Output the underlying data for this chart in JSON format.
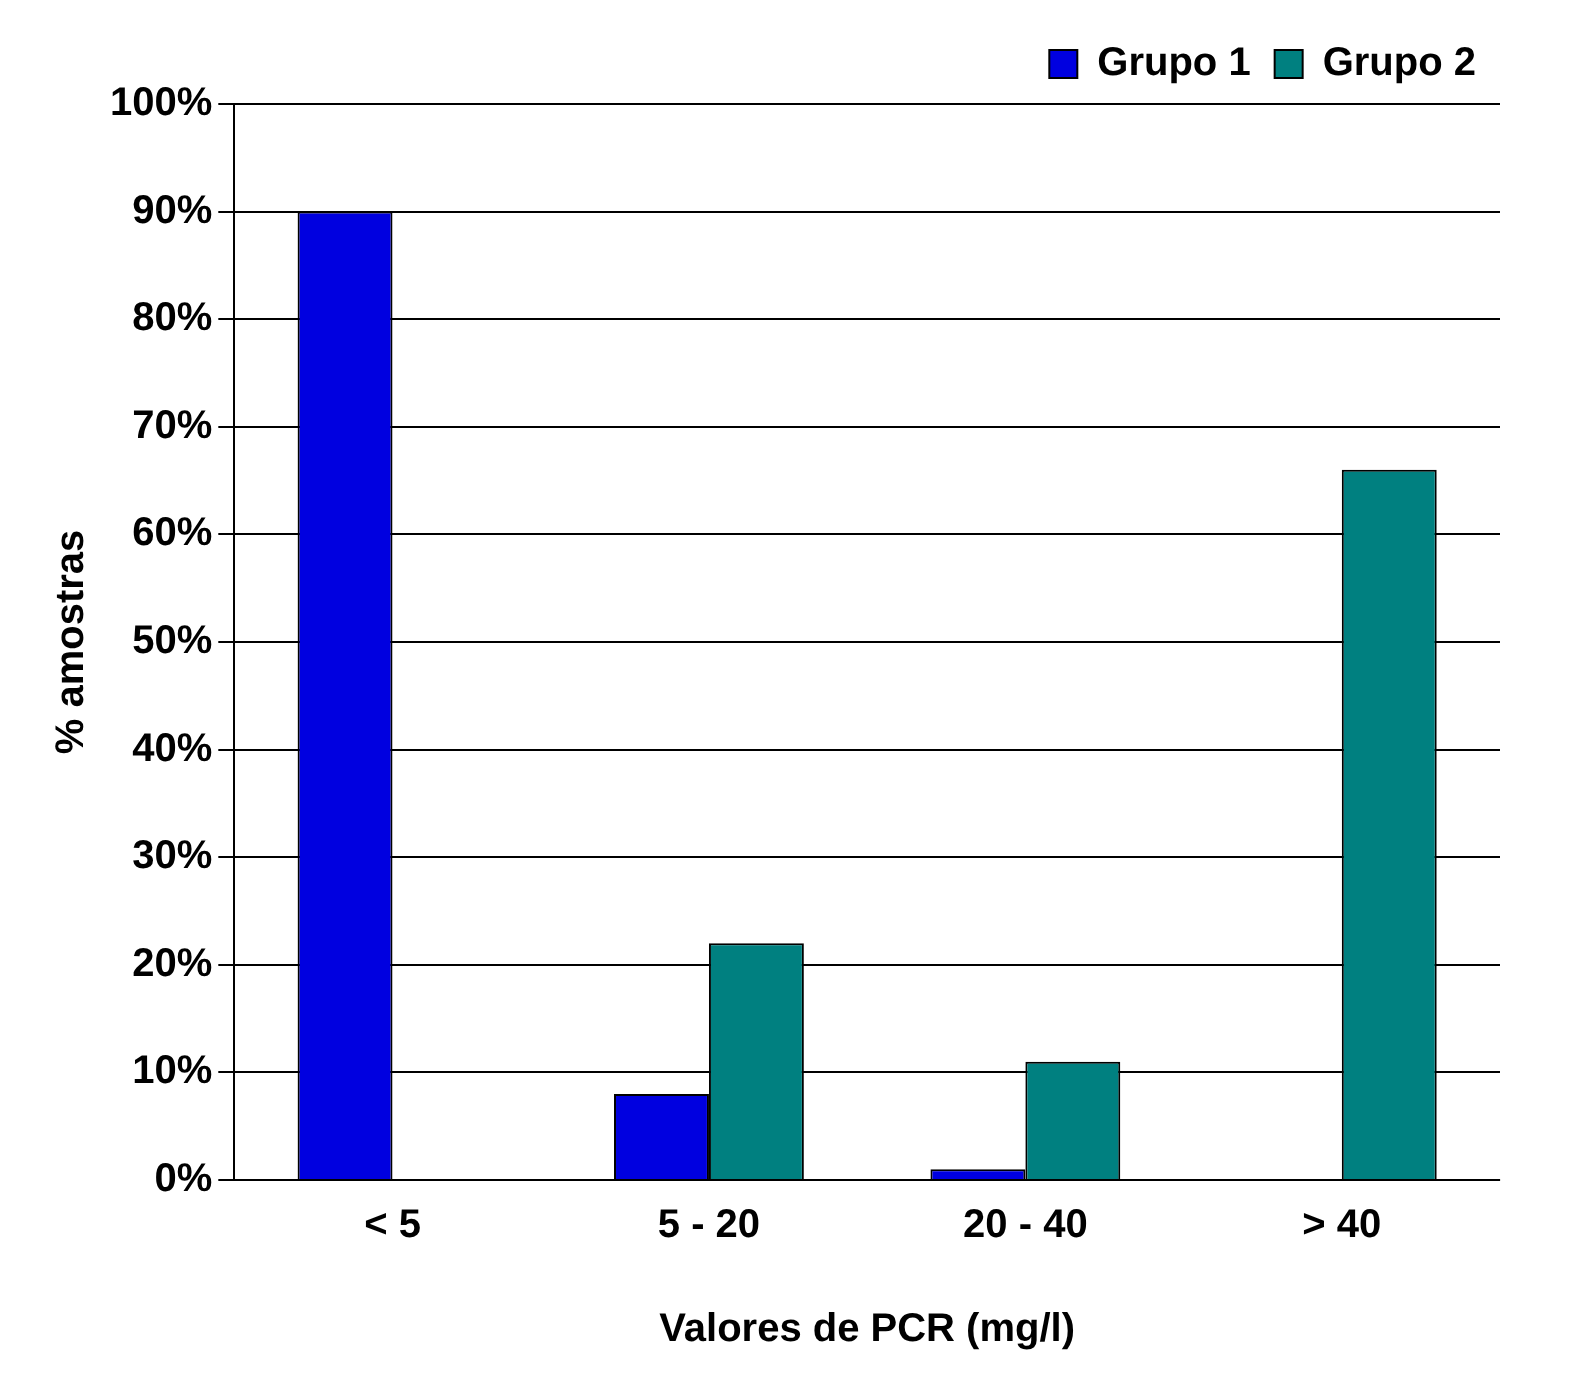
{
  "chart_data": {
    "type": "bar",
    "xlabel": "Valores de PCR (mg/l)",
    "ylabel": "% amostras",
    "categories": [
      "< 5",
      "5 - 20",
      "20 - 40",
      "> 40"
    ],
    "series": [
      {
        "name": "Grupo 1",
        "color": "#0000e0",
        "values": [
          90,
          8,
          1,
          0
        ]
      },
      {
        "name": "Grupo 2",
        "color": "#008080",
        "values": [
          0,
          22,
          11,
          66
        ]
      }
    ],
    "ylim": [
      0,
      100
    ],
    "yticks": [
      {
        "value": 0,
        "label": "0%"
      },
      {
        "value": 10,
        "label": "10%"
      },
      {
        "value": 20,
        "label": "20%"
      },
      {
        "value": 30,
        "label": "30%"
      },
      {
        "value": 40,
        "label": "40%"
      },
      {
        "value": 50,
        "label": "50%"
      },
      {
        "value": 60,
        "label": "60%"
      },
      {
        "value": 70,
        "label": "70%"
      },
      {
        "value": 80,
        "label": "80%"
      },
      {
        "value": 90,
        "label": "90%"
      },
      {
        "value": 100,
        "label": "100%"
      }
    ],
    "grid": "y",
    "legend": "top right"
  }
}
